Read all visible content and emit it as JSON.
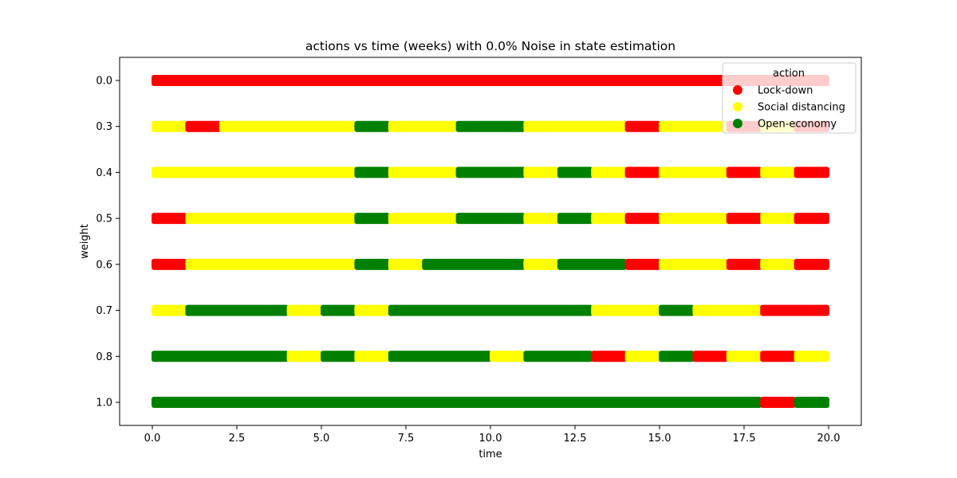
{
  "chart_data": {
    "type": "scatter",
    "title": "actions vs time (weeks) with 0.0% Noise in state estimation",
    "xlabel": "time",
    "ylabel": "weight",
    "xlim": [
      -0.9,
      21
    ],
    "x_ticks": [
      "0.0",
      "2.5",
      "5.0",
      "7.5",
      "10.0",
      "12.5",
      "15.0",
      "17.5",
      "20.0"
    ],
    "y_categories": [
      "0.0",
      "0.3",
      "0.4",
      "0.5",
      "0.6",
      "0.7",
      "0.8",
      "1.0"
    ],
    "x_range": [
      0,
      20
    ],
    "legend": {
      "title": "action",
      "position": "top-right",
      "entries": [
        {
          "label": "Lock-down",
          "color": "#ff0000"
        },
        {
          "label": "Social distancing",
          "color": "#ffff00"
        },
        {
          "label": "Open-economy",
          "color": "#008000"
        }
      ]
    },
    "series": [
      {
        "weight": "0.0",
        "segments": [
          {
            "start": 0,
            "end": 20,
            "action": "Lock-down"
          }
        ]
      },
      {
        "weight": "0.3",
        "segments": [
          {
            "start": 0,
            "end": 1,
            "action": "Social distancing"
          },
          {
            "start": 1,
            "end": 2,
            "action": "Lock-down"
          },
          {
            "start": 2,
            "end": 6,
            "action": "Social distancing"
          },
          {
            "start": 6,
            "end": 7,
            "action": "Open-economy"
          },
          {
            "start": 7,
            "end": 9,
            "action": "Social distancing"
          },
          {
            "start": 9,
            "end": 11,
            "action": "Open-economy"
          },
          {
            "start": 11,
            "end": 14,
            "action": "Social distancing"
          },
          {
            "start": 14,
            "end": 15,
            "action": "Lock-down"
          },
          {
            "start": 15,
            "end": 17,
            "action": "Social distancing"
          },
          {
            "start": 17,
            "end": 18,
            "action": "Lock-down"
          },
          {
            "start": 18,
            "end": 19,
            "action": "Social distancing"
          },
          {
            "start": 19,
            "end": 20,
            "action": "Lock-down"
          }
        ]
      },
      {
        "weight": "0.4",
        "segments": [
          {
            "start": 0,
            "end": 6,
            "action": "Social distancing"
          },
          {
            "start": 6,
            "end": 7,
            "action": "Open-economy"
          },
          {
            "start": 7,
            "end": 9,
            "action": "Social distancing"
          },
          {
            "start": 9,
            "end": 11,
            "action": "Open-economy"
          },
          {
            "start": 11,
            "end": 12,
            "action": "Social distancing"
          },
          {
            "start": 12,
            "end": 13,
            "action": "Open-economy"
          },
          {
            "start": 13,
            "end": 14,
            "action": "Social distancing"
          },
          {
            "start": 14,
            "end": 15,
            "action": "Lock-down"
          },
          {
            "start": 15,
            "end": 17,
            "action": "Social distancing"
          },
          {
            "start": 17,
            "end": 18,
            "action": "Lock-down"
          },
          {
            "start": 18,
            "end": 19,
            "action": "Social distancing"
          },
          {
            "start": 19,
            "end": 20,
            "action": "Lock-down"
          }
        ]
      },
      {
        "weight": "0.5",
        "segments": [
          {
            "start": 0,
            "end": 1,
            "action": "Lock-down"
          },
          {
            "start": 1,
            "end": 6,
            "action": "Social distancing"
          },
          {
            "start": 6,
            "end": 7,
            "action": "Open-economy"
          },
          {
            "start": 7,
            "end": 9,
            "action": "Social distancing"
          },
          {
            "start": 9,
            "end": 11,
            "action": "Open-economy"
          },
          {
            "start": 11,
            "end": 12,
            "action": "Social distancing"
          },
          {
            "start": 12,
            "end": 13,
            "action": "Open-economy"
          },
          {
            "start": 13,
            "end": 14,
            "action": "Social distancing"
          },
          {
            "start": 14,
            "end": 15,
            "action": "Lock-down"
          },
          {
            "start": 15,
            "end": 17,
            "action": "Social distancing"
          },
          {
            "start": 17,
            "end": 18,
            "action": "Lock-down"
          },
          {
            "start": 18,
            "end": 19,
            "action": "Social distancing"
          },
          {
            "start": 19,
            "end": 20,
            "action": "Lock-down"
          }
        ]
      },
      {
        "weight": "0.6",
        "segments": [
          {
            "start": 0,
            "end": 1,
            "action": "Lock-down"
          },
          {
            "start": 1,
            "end": 6,
            "action": "Social distancing"
          },
          {
            "start": 6,
            "end": 7,
            "action": "Open-economy"
          },
          {
            "start": 7,
            "end": 8,
            "action": "Social distancing"
          },
          {
            "start": 8,
            "end": 11,
            "action": "Open-economy"
          },
          {
            "start": 11,
            "end": 12,
            "action": "Social distancing"
          },
          {
            "start": 12,
            "end": 14,
            "action": "Open-economy"
          },
          {
            "start": 14,
            "end": 15,
            "action": "Lock-down"
          },
          {
            "start": 15,
            "end": 17,
            "action": "Social distancing"
          },
          {
            "start": 17,
            "end": 18,
            "action": "Lock-down"
          },
          {
            "start": 18,
            "end": 19,
            "action": "Social distancing"
          },
          {
            "start": 19,
            "end": 20,
            "action": "Lock-down"
          }
        ]
      },
      {
        "weight": "0.7",
        "segments": [
          {
            "start": 0,
            "end": 1,
            "action": "Social distancing"
          },
          {
            "start": 1,
            "end": 4,
            "action": "Open-economy"
          },
          {
            "start": 4,
            "end": 5,
            "action": "Social distancing"
          },
          {
            "start": 5,
            "end": 6,
            "action": "Open-economy"
          },
          {
            "start": 6,
            "end": 7,
            "action": "Social distancing"
          },
          {
            "start": 7,
            "end": 13,
            "action": "Open-economy"
          },
          {
            "start": 13,
            "end": 15,
            "action": "Social distancing"
          },
          {
            "start": 15,
            "end": 16,
            "action": "Open-economy"
          },
          {
            "start": 16,
            "end": 18,
            "action": "Social distancing"
          },
          {
            "start": 18,
            "end": 20,
            "action": "Lock-down"
          }
        ]
      },
      {
        "weight": "0.8",
        "segments": [
          {
            "start": 0,
            "end": 4,
            "action": "Open-economy"
          },
          {
            "start": 4,
            "end": 5,
            "action": "Social distancing"
          },
          {
            "start": 5,
            "end": 6,
            "action": "Open-economy"
          },
          {
            "start": 6,
            "end": 7,
            "action": "Social distancing"
          },
          {
            "start": 7,
            "end": 10,
            "action": "Open-economy"
          },
          {
            "start": 10,
            "end": 11,
            "action": "Social distancing"
          },
          {
            "start": 11,
            "end": 13,
            "action": "Open-economy"
          },
          {
            "start": 13,
            "end": 14,
            "action": "Lock-down"
          },
          {
            "start": 14,
            "end": 15,
            "action": "Social distancing"
          },
          {
            "start": 15,
            "end": 16,
            "action": "Open-economy"
          },
          {
            "start": 16,
            "end": 17,
            "action": "Lock-down"
          },
          {
            "start": 17,
            "end": 18,
            "action": "Social distancing"
          },
          {
            "start": 18,
            "end": 19,
            "action": "Lock-down"
          },
          {
            "start": 19,
            "end": 20,
            "action": "Social distancing"
          }
        ]
      },
      {
        "weight": "1.0",
        "segments": [
          {
            "start": 0,
            "end": 18,
            "action": "Open-economy"
          },
          {
            "start": 18,
            "end": 19,
            "action": "Lock-down"
          },
          {
            "start": 19,
            "end": 20,
            "action": "Open-economy"
          }
        ]
      }
    ]
  }
}
